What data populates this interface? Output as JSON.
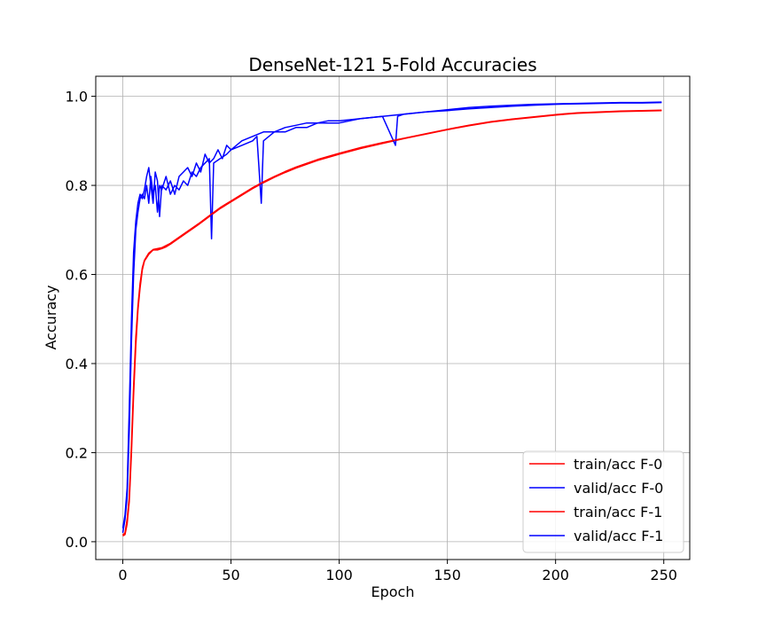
{
  "chart_data": {
    "type": "line",
    "title": "DenseNet-121 5-Fold Accuracies",
    "xlabel": "Epoch",
    "ylabel": "Accuracy",
    "xlim": [
      -12.5,
      262
    ],
    "ylim": [
      -0.04,
      1.045
    ],
    "xticks": [
      0,
      50,
      100,
      150,
      200,
      250
    ],
    "yticks": [
      0.0,
      0.2,
      0.4,
      0.6,
      0.8,
      1.0
    ],
    "xtick_labels": [
      "0",
      "50",
      "100",
      "150",
      "200",
      "250"
    ],
    "ytick_labels": [
      "0.0",
      "0.2",
      "0.4",
      "0.6",
      "0.8",
      "1.0"
    ],
    "grid": true,
    "legend_position": "lower-right",
    "series": [
      {
        "name": "train/acc F-0",
        "color": "#ff0000",
        "points": [
          [
            0,
            0.013
          ],
          [
            1,
            0.016
          ],
          [
            2,
            0.04
          ],
          [
            3,
            0.09
          ],
          [
            4,
            0.2
          ],
          [
            5,
            0.33
          ],
          [
            6,
            0.44
          ],
          [
            7,
            0.52
          ],
          [
            8,
            0.57
          ],
          [
            9,
            0.61
          ],
          [
            10,
            0.63
          ],
          [
            12,
            0.645
          ],
          [
            14,
            0.655
          ],
          [
            16,
            0.655
          ],
          [
            18,
            0.658
          ],
          [
            20,
            0.662
          ],
          [
            22,
            0.668
          ],
          [
            25,
            0.678
          ],
          [
            30,
            0.695
          ],
          [
            35,
            0.712
          ],
          [
            40,
            0.73
          ],
          [
            45,
            0.748
          ],
          [
            50,
            0.763
          ],
          [
            55,
            0.778
          ],
          [
            60,
            0.793
          ],
          [
            65,
            0.806
          ],
          [
            70,
            0.818
          ],
          [
            75,
            0.829
          ],
          [
            80,
            0.839
          ],
          [
            90,
            0.856
          ],
          [
            100,
            0.87
          ],
          [
            110,
            0.883
          ],
          [
            120,
            0.894
          ],
          [
            130,
            0.905
          ],
          [
            140,
            0.915
          ],
          [
            150,
            0.925
          ],
          [
            160,
            0.934
          ],
          [
            170,
            0.942
          ],
          [
            180,
            0.948
          ],
          [
            190,
            0.953
          ],
          [
            200,
            0.958
          ],
          [
            210,
            0.962
          ],
          [
            220,
            0.964
          ],
          [
            230,
            0.966
          ],
          [
            240,
            0.967
          ],
          [
            249,
            0.968
          ]
        ]
      },
      {
        "name": "valid/acc F-0",
        "color": "#0000ff",
        "points": [
          [
            0,
            0.02
          ],
          [
            1,
            0.05
          ],
          [
            2,
            0.1
          ],
          [
            3,
            0.25
          ],
          [
            4,
            0.45
          ],
          [
            5,
            0.6
          ],
          [
            6,
            0.7
          ],
          [
            7,
            0.74
          ],
          [
            8,
            0.77
          ],
          [
            9,
            0.78
          ],
          [
            10,
            0.77
          ],
          [
            11,
            0.8
          ],
          [
            12,
            0.76
          ],
          [
            13,
            0.82
          ],
          [
            14,
            0.78
          ],
          [
            15,
            0.8
          ],
          [
            16,
            0.74
          ],
          [
            17,
            0.8
          ],
          [
            18,
            0.79
          ],
          [
            20,
            0.82
          ],
          [
            22,
            0.78
          ],
          [
            24,
            0.8
          ],
          [
            26,
            0.79
          ],
          [
            28,
            0.81
          ],
          [
            30,
            0.8
          ],
          [
            32,
            0.83
          ],
          [
            34,
            0.82
          ],
          [
            36,
            0.84
          ],
          [
            38,
            0.85
          ],
          [
            40,
            0.86
          ],
          [
            41,
            0.68
          ],
          [
            42,
            0.85
          ],
          [
            45,
            0.86
          ],
          [
            48,
            0.87
          ],
          [
            50,
            0.88
          ],
          [
            55,
            0.89
          ],
          [
            60,
            0.9
          ],
          [
            62,
            0.91
          ],
          [
            64,
            0.76
          ],
          [
            65,
            0.9
          ],
          [
            70,
            0.92
          ],
          [
            75,
            0.92
          ],
          [
            80,
            0.93
          ],
          [
            85,
            0.93
          ],
          [
            90,
            0.94
          ],
          [
            95,
            0.94
          ],
          [
            100,
            0.94
          ],
          [
            110,
            0.95
          ],
          [
            120,
            0.955
          ],
          [
            126,
            0.89
          ],
          [
            127,
            0.955
          ],
          [
            130,
            0.96
          ],
          [
            140,
            0.965
          ],
          [
            150,
            0.97
          ],
          [
            160,
            0.975
          ],
          [
            170,
            0.978
          ],
          [
            180,
            0.98
          ],
          [
            190,
            0.982
          ],
          [
            200,
            0.983
          ],
          [
            210,
            0.984
          ],
          [
            220,
            0.985
          ],
          [
            230,
            0.986
          ],
          [
            240,
            0.986
          ],
          [
            249,
            0.987
          ]
        ]
      },
      {
        "name": "train/acc F-1",
        "color": "#ff0000",
        "points": [
          [
            0,
            0.015
          ],
          [
            1,
            0.02
          ],
          [
            2,
            0.05
          ],
          [
            3,
            0.1
          ],
          [
            4,
            0.22
          ],
          [
            5,
            0.35
          ],
          [
            6,
            0.46
          ],
          [
            7,
            0.53
          ],
          [
            8,
            0.58
          ],
          [
            9,
            0.615
          ],
          [
            10,
            0.632
          ],
          [
            12,
            0.648
          ],
          [
            14,
            0.656
          ],
          [
            16,
            0.658
          ],
          [
            18,
            0.66
          ],
          [
            20,
            0.665
          ],
          [
            22,
            0.67
          ],
          [
            25,
            0.68
          ],
          [
            30,
            0.697
          ],
          [
            35,
            0.714
          ],
          [
            40,
            0.732
          ],
          [
            45,
            0.75
          ],
          [
            50,
            0.765
          ],
          [
            55,
            0.78
          ],
          [
            60,
            0.795
          ],
          [
            65,
            0.808
          ],
          [
            70,
            0.82
          ],
          [
            75,
            0.831
          ],
          [
            80,
            0.841
          ],
          [
            90,
            0.858
          ],
          [
            100,
            0.872
          ],
          [
            110,
            0.885
          ],
          [
            120,
            0.896
          ],
          [
            130,
            0.906
          ],
          [
            140,
            0.916
          ],
          [
            150,
            0.926
          ],
          [
            160,
            0.935
          ],
          [
            170,
            0.943
          ],
          [
            180,
            0.949
          ],
          [
            190,
            0.954
          ],
          [
            200,
            0.959
          ],
          [
            210,
            0.963
          ],
          [
            220,
            0.965
          ],
          [
            230,
            0.967
          ],
          [
            240,
            0.968
          ],
          [
            249,
            0.969
          ]
        ]
      },
      {
        "name": "valid/acc F-1",
        "color": "#0000ff",
        "points": [
          [
            0,
            0.03
          ],
          [
            1,
            0.06
          ],
          [
            2,
            0.12
          ],
          [
            3,
            0.3
          ],
          [
            4,
            0.5
          ],
          [
            5,
            0.65
          ],
          [
            6,
            0.72
          ],
          [
            7,
            0.76
          ],
          [
            8,
            0.78
          ],
          [
            9,
            0.77
          ],
          [
            10,
            0.79
          ],
          [
            11,
            0.82
          ],
          [
            12,
            0.84
          ],
          [
            13,
            0.8
          ],
          [
            14,
            0.76
          ],
          [
            15,
            0.83
          ],
          [
            16,
            0.81
          ],
          [
            17,
            0.73
          ],
          [
            18,
            0.8
          ],
          [
            20,
            0.79
          ],
          [
            22,
            0.81
          ],
          [
            24,
            0.78
          ],
          [
            26,
            0.82
          ],
          [
            28,
            0.83
          ],
          [
            30,
            0.84
          ],
          [
            32,
            0.82
          ],
          [
            34,
            0.85
          ],
          [
            36,
            0.83
          ],
          [
            38,
            0.87
          ],
          [
            40,
            0.85
          ],
          [
            42,
            0.86
          ],
          [
            44,
            0.88
          ],
          [
            46,
            0.86
          ],
          [
            48,
            0.89
          ],
          [
            50,
            0.88
          ],
          [
            55,
            0.9
          ],
          [
            60,
            0.91
          ],
          [
            65,
            0.92
          ],
          [
            70,
            0.92
          ],
          [
            75,
            0.93
          ],
          [
            80,
            0.935
          ],
          [
            85,
            0.94
          ],
          [
            90,
            0.94
          ],
          [
            95,
            0.945
          ],
          [
            100,
            0.945
          ],
          [
            110,
            0.95
          ],
          [
            120,
            0.955
          ],
          [
            130,
            0.96
          ],
          [
            140,
            0.965
          ],
          [
            150,
            0.968
          ],
          [
            160,
            0.972
          ],
          [
            170,
            0.975
          ],
          [
            180,
            0.978
          ],
          [
            190,
            0.98
          ],
          [
            200,
            0.982
          ],
          [
            210,
            0.983
          ],
          [
            220,
            0.984
          ],
          [
            230,
            0.985
          ],
          [
            240,
            0.985
          ],
          [
            249,
            0.986
          ]
        ]
      }
    ]
  }
}
